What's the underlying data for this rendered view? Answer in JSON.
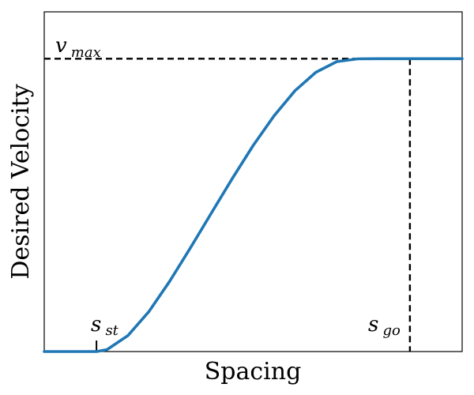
{
  "chart_data": {
    "type": "line",
    "title": "",
    "xlabel": "Spacing",
    "ylabel": "Desired Velocity",
    "x_ticks": [],
    "y_ticks": [],
    "xlim": [
      0,
      1
    ],
    "ylim": [
      0,
      1.16
    ],
    "grid": false,
    "legend": false,
    "series": [
      {
        "color": "#1f77b4",
        "x": [
          0,
          0.125,
          0.15,
          0.2,
          0.25,
          0.3,
          0.35,
          0.4,
          0.45,
          0.5,
          0.55,
          0.6,
          0.65,
          0.7,
          0.75,
          0.8,
          0.85,
          0.875,
          1
        ],
        "y": [
          0,
          0,
          0.0064,
          0.0542,
          0.1356,
          0.2396,
          0.3545,
          0.4731,
          0.591,
          0.7038,
          0.8051,
          0.8907,
          0.9536,
          0.99,
          0.9995,
          1.0,
          1.0,
          1.0,
          1.0
        ]
      }
    ],
    "annotations": {
      "vmax": {
        "label_main": "v",
        "label_sub": "max",
        "y": 1.0
      },
      "s_st": {
        "label_main": "s",
        "label_sub": "st",
        "x": 0.125
      },
      "s_go": {
        "label_main": "s",
        "label_sub": "go",
        "x": 0.875
      }
    },
    "colors": {
      "curve": "#1f77b4",
      "dashed": "#000000",
      "axes": "#000000"
    }
  }
}
